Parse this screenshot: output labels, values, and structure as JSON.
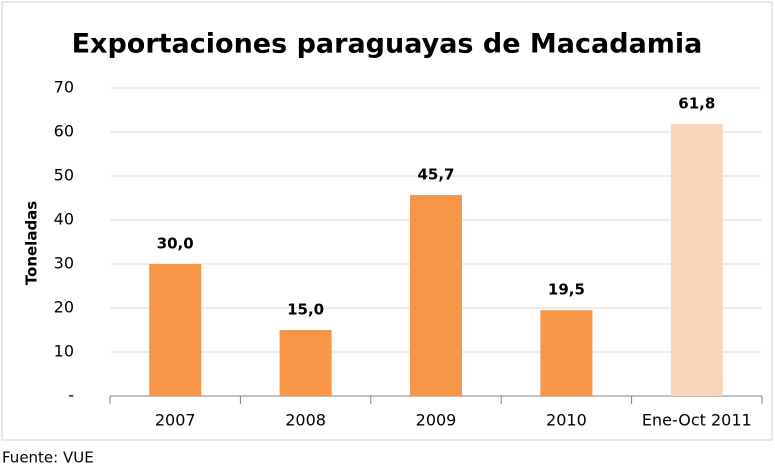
{
  "chart_data": {
    "type": "bar",
    "title": "Exportaciones paraguayas de Macadamia",
    "ylabel": "Toneladas",
    "source": "Fuente: VUE",
    "categories": [
      "2007",
      "2008",
      "2009",
      "2010",
      "Ene-Oct 2011"
    ],
    "values": [
      30.0,
      15.0,
      45.7,
      19.5,
      61.8
    ],
    "value_labels": [
      "30,0",
      "15,0",
      "45,7",
      "19,5",
      "61,8"
    ],
    "colors": [
      "#f79646",
      "#f79646",
      "#f79646",
      "#f79646",
      "#fbd5b5"
    ],
    "ylim": [
      0,
      70
    ],
    "yticks": [
      {
        "value": 0,
        "label": "-"
      },
      10,
      20,
      30,
      40,
      50,
      60,
      70
    ],
    "grid": true
  }
}
